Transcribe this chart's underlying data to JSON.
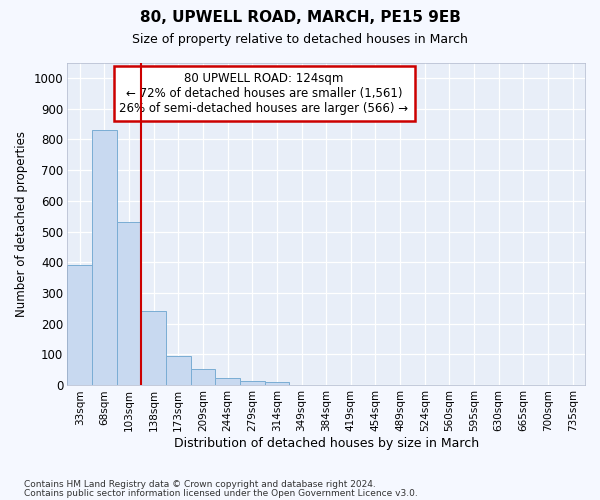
{
  "title": "80, UPWELL ROAD, MARCH, PE15 9EB",
  "subtitle": "Size of property relative to detached houses in March",
  "xlabel": "Distribution of detached houses by size in March",
  "ylabel": "Number of detached properties",
  "categories": [
    "33sqm",
    "68sqm",
    "103sqm",
    "138sqm",
    "173sqm",
    "209sqm",
    "244sqm",
    "279sqm",
    "314sqm",
    "349sqm",
    "384sqm",
    "419sqm",
    "454sqm",
    "489sqm",
    "524sqm",
    "560sqm",
    "595sqm",
    "630sqm",
    "665sqm",
    "700sqm",
    "735sqm"
  ],
  "values": [
    390,
    830,
    530,
    240,
    95,
    52,
    22,
    14,
    10,
    0,
    0,
    0,
    0,
    0,
    0,
    0,
    0,
    0,
    0,
    0,
    0
  ],
  "bar_color": "#c8d9f0",
  "bar_edge_color": "#7aadd4",
  "vline_color": "#cc0000",
  "annotation_text": "80 UPWELL ROAD: 124sqm\n← 72% of detached houses are smaller (1,561)\n26% of semi-detached houses are larger (566) →",
  "annotation_box_color": "#ffffff",
  "annotation_box_edge": "#cc0000",
  "ylim": [
    0,
    1050
  ],
  "yticks": [
    0,
    100,
    200,
    300,
    400,
    500,
    600,
    700,
    800,
    900,
    1000
  ],
  "footnote1": "Contains HM Land Registry data © Crown copyright and database right 2024.",
  "footnote2": "Contains public sector information licensed under the Open Government Licence v3.0.",
  "bg_color": "#f5f8ff",
  "plot_bg_color": "#e8eef8"
}
